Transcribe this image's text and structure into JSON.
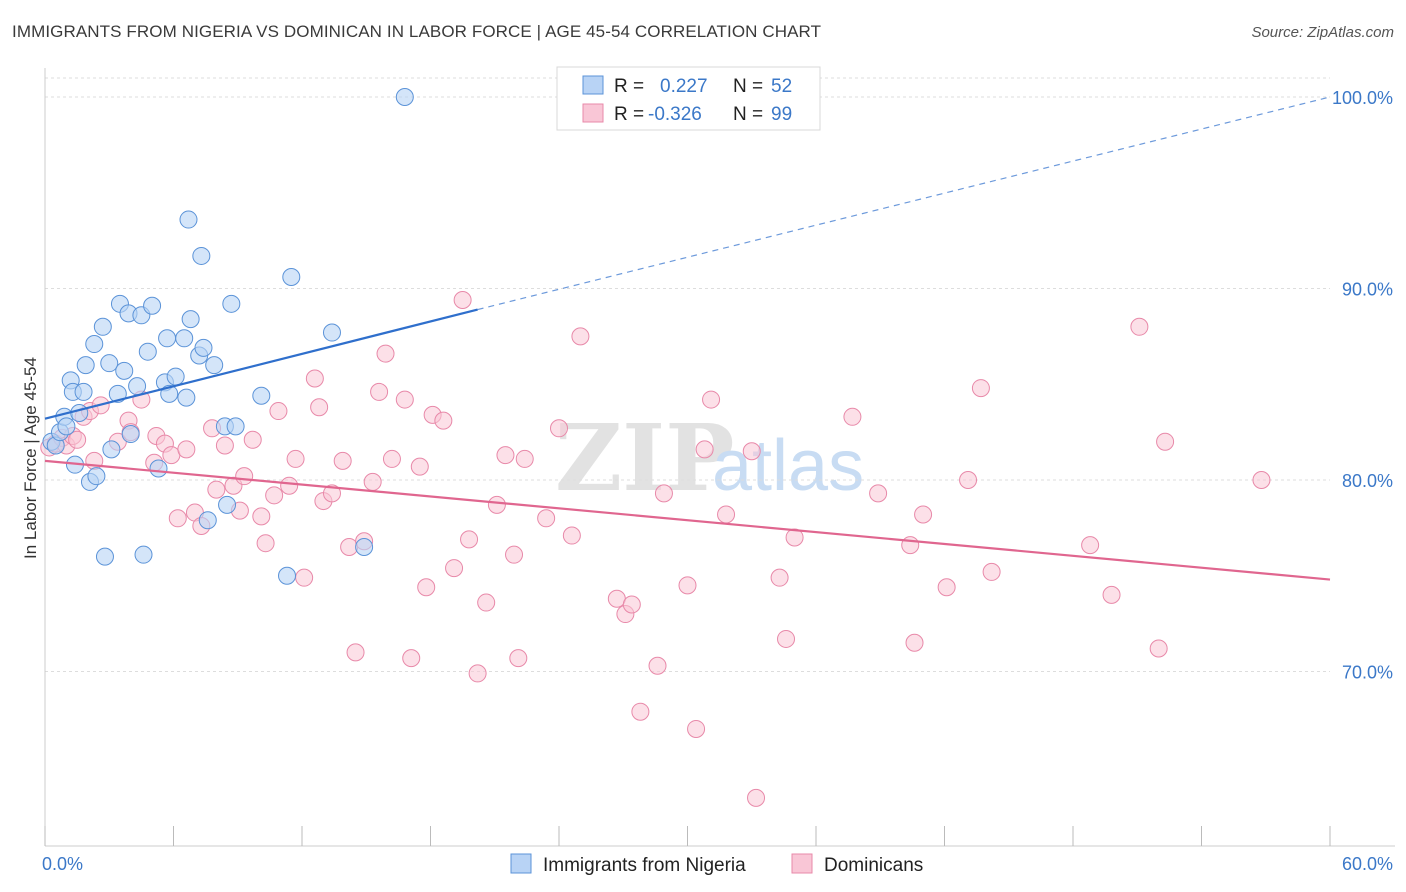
{
  "title": "IMMIGRANTS FROM NIGERIA VS DOMINICAN IN LABOR FORCE | AGE 45-54 CORRELATION CHART",
  "source": "Source: ZipAtlas.com",
  "watermark": {
    "zip": "ZIP",
    "atlas": "atlas"
  },
  "colors": {
    "nigeria_fill": "#b8d3f5",
    "nigeria_stroke": "#5b93d8",
    "nigeria_line": "#2f6fcc",
    "dominican_fill": "#f9c6d6",
    "dominican_stroke": "#e889a9",
    "dominican_line": "#e0668f",
    "grid": "#dddddd",
    "axis_text": "#3b78c8"
  },
  "legend": {
    "rows": [
      {
        "r_label": "R =",
        "r_value": "0.227",
        "n_label": "N =",
        "n_value": "52"
      },
      {
        "r_label": "R =",
        "r_value": "-0.326",
        "n_label": "N =",
        "n_value": "99"
      }
    ]
  },
  "bottom_legend": [
    "Immigrants from Nigeria",
    "Dominicans"
  ],
  "chart_data": {
    "type": "scatter",
    "title": "IMMIGRANTS FROM NIGERIA VS DOMINICAN IN LABOR FORCE | AGE 45-54 CORRELATION CHART",
    "xlabel": "",
    "ylabel": "In Labor Force | Age 45-54",
    "xlim": [
      0,
      60
    ],
    "ylim": [
      62.5,
      101
    ],
    "x_tick_labels": [
      "0.0%",
      "60.0%"
    ],
    "y_ticks": [
      70,
      80,
      90,
      100
    ],
    "y_tick_labels": [
      "70.0%",
      "80.0%",
      "90.0%",
      "100.0%"
    ],
    "grid": true,
    "legend_position": "top-center",
    "series": [
      {
        "name": "Immigrants from Nigeria",
        "r": 0.227,
        "n": 52,
        "trend": {
          "x0": 0,
          "y0": 83.2,
          "x1": 20.2,
          "y1": 88.9,
          "dashed_to_x": 60,
          "dashed_to_y": 100.0
        },
        "points": [
          [
            0.3,
            82.0
          ],
          [
            0.5,
            81.8
          ],
          [
            0.7,
            82.5
          ],
          [
            0.9,
            83.3
          ],
          [
            1.0,
            82.8
          ],
          [
            1.2,
            85.2
          ],
          [
            1.3,
            84.6
          ],
          [
            1.4,
            80.8
          ],
          [
            1.6,
            83.5
          ],
          [
            1.8,
            84.6
          ],
          [
            1.9,
            86.0
          ],
          [
            2.1,
            79.9
          ],
          [
            2.3,
            87.1
          ],
          [
            2.4,
            80.2
          ],
          [
            2.7,
            88.0
          ],
          [
            3.0,
            86.1
          ],
          [
            3.1,
            81.6
          ],
          [
            3.4,
            84.5
          ],
          [
            3.5,
            89.2
          ],
          [
            3.7,
            85.7
          ],
          [
            3.9,
            88.7
          ],
          [
            4.0,
            82.4
          ],
          [
            4.3,
            84.9
          ],
          [
            4.5,
            88.6
          ],
          [
            4.8,
            86.7
          ],
          [
            5.0,
            89.1
          ],
          [
            5.3,
            80.6
          ],
          [
            5.6,
            85.1
          ],
          [
            5.7,
            87.4
          ],
          [
            5.8,
            84.5
          ],
          [
            6.1,
            85.4
          ],
          [
            6.5,
            87.4
          ],
          [
            6.6,
            84.3
          ],
          [
            6.7,
            93.6
          ],
          [
            6.8,
            88.4
          ],
          [
            7.2,
            86.5
          ],
          [
            7.3,
            91.7
          ],
          [
            7.4,
            86.9
          ],
          [
            7.6,
            77.9
          ],
          [
            7.9,
            86.0
          ],
          [
            8.4,
            82.8
          ],
          [
            8.5,
            78.7
          ],
          [
            8.7,
            89.2
          ],
          [
            8.9,
            82.8
          ],
          [
            10.1,
            84.4
          ],
          [
            11.3,
            75.0
          ],
          [
            11.5,
            90.6
          ],
          [
            13.4,
            87.7
          ],
          [
            14.9,
            76.5
          ],
          [
            16.8,
            100.0
          ],
          [
            4.6,
            76.1
          ],
          [
            2.8,
            76.0
          ]
        ]
      },
      {
        "name": "Dominicans",
        "r": -0.326,
        "n": 99,
        "trend": {
          "x0": 0,
          "y0": 81.0,
          "x1": 60,
          "y1": 74.8
        },
        "points": [
          [
            0.2,
            81.7
          ],
          [
            0.5,
            81.9
          ],
          [
            0.8,
            82.2
          ],
          [
            1.0,
            81.8
          ],
          [
            1.3,
            82.3
          ],
          [
            1.5,
            82.1
          ],
          [
            1.8,
            83.3
          ],
          [
            2.1,
            83.6
          ],
          [
            2.3,
            81.0
          ],
          [
            2.6,
            83.9
          ],
          [
            3.4,
            82.0
          ],
          [
            3.9,
            83.1
          ],
          [
            4.0,
            82.5
          ],
          [
            4.5,
            84.2
          ],
          [
            5.1,
            80.9
          ],
          [
            5.2,
            82.3
          ],
          [
            5.6,
            81.9
          ],
          [
            5.9,
            81.3
          ],
          [
            6.2,
            78.0
          ],
          [
            6.6,
            81.6
          ],
          [
            7.0,
            78.3
          ],
          [
            7.3,
            77.6
          ],
          [
            7.8,
            82.7
          ],
          [
            8.0,
            79.5
          ],
          [
            8.4,
            81.8
          ],
          [
            8.8,
            79.7
          ],
          [
            9.1,
            78.4
          ],
          [
            9.3,
            80.2
          ],
          [
            9.7,
            82.1
          ],
          [
            10.1,
            78.1
          ],
          [
            10.3,
            76.7
          ],
          [
            10.7,
            79.2
          ],
          [
            10.9,
            83.6
          ],
          [
            11.4,
            79.7
          ],
          [
            11.7,
            81.1
          ],
          [
            12.1,
            74.9
          ],
          [
            12.6,
            85.3
          ],
          [
            12.8,
            83.8
          ],
          [
            13.0,
            78.9
          ],
          [
            13.4,
            79.3
          ],
          [
            13.9,
            81.0
          ],
          [
            14.2,
            76.5
          ],
          [
            14.5,
            71.0
          ],
          [
            14.9,
            76.8
          ],
          [
            15.3,
            79.9
          ],
          [
            15.6,
            84.6
          ],
          [
            15.9,
            86.6
          ],
          [
            16.2,
            81.1
          ],
          [
            16.8,
            84.2
          ],
          [
            17.1,
            70.7
          ],
          [
            17.5,
            80.7
          ],
          [
            17.8,
            74.4
          ],
          [
            18.1,
            83.4
          ],
          [
            18.6,
            83.1
          ],
          [
            19.1,
            75.4
          ],
          [
            19.5,
            89.4
          ],
          [
            19.8,
            76.9
          ],
          [
            20.2,
            69.9
          ],
          [
            20.6,
            73.6
          ],
          [
            21.1,
            78.7
          ],
          [
            21.5,
            81.3
          ],
          [
            21.9,
            76.1
          ],
          [
            22.1,
            70.7
          ],
          [
            22.4,
            81.1
          ],
          [
            23.4,
            78.0
          ],
          [
            24.0,
            82.7
          ],
          [
            24.6,
            77.1
          ],
          [
            25.0,
            87.5
          ],
          [
            26.7,
            73.8
          ],
          [
            27.1,
            73.0
          ],
          [
            27.4,
            73.5
          ],
          [
            27.8,
            67.9
          ],
          [
            28.6,
            70.3
          ],
          [
            28.9,
            79.3
          ],
          [
            30.0,
            74.5
          ],
          [
            30.4,
            67.0
          ],
          [
            30.8,
            81.6
          ],
          [
            31.1,
            84.2
          ],
          [
            31.8,
            78.2
          ],
          [
            33.0,
            81.5
          ],
          [
            33.2,
            63.4
          ],
          [
            34.3,
            74.9
          ],
          [
            34.6,
            71.7
          ],
          [
            35.0,
            77.0
          ],
          [
            37.7,
            83.3
          ],
          [
            38.9,
            79.3
          ],
          [
            40.4,
            76.6
          ],
          [
            40.6,
            71.5
          ],
          [
            41.0,
            78.2
          ],
          [
            42.1,
            74.4
          ],
          [
            43.1,
            80.0
          ],
          [
            43.7,
            84.8
          ],
          [
            44.2,
            75.2
          ],
          [
            48.8,
            76.6
          ],
          [
            49.8,
            74.0
          ],
          [
            51.1,
            88.0
          ],
          [
            52.0,
            71.2
          ],
          [
            52.3,
            82.0
          ],
          [
            56.8,
            80.0
          ]
        ]
      }
    ]
  }
}
